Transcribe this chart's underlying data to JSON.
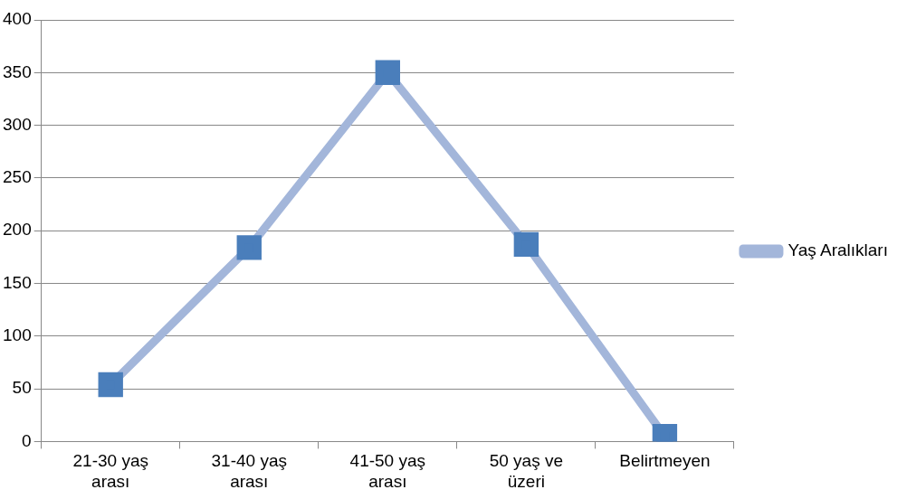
{
  "chart_data": {
    "type": "line",
    "categories": [
      "21-30 yaş arası",
      "31-40 yaş arası",
      "41-50 yaş arası",
      "50 yaş ve üzeri",
      "Belirtmeyen"
    ],
    "series": [
      {
        "name": "Yaş Aralıkları",
        "color": "#a3b6da",
        "values": [
          54,
          184,
          350,
          187,
          5
        ]
      }
    ],
    "ylim": [
      0,
      400
    ],
    "yticks": [
      0,
      50,
      100,
      150,
      200,
      250,
      300,
      350,
      400
    ],
    "grid": "y",
    "legend": "right",
    "marker": "square",
    "line_style": "solid"
  }
}
